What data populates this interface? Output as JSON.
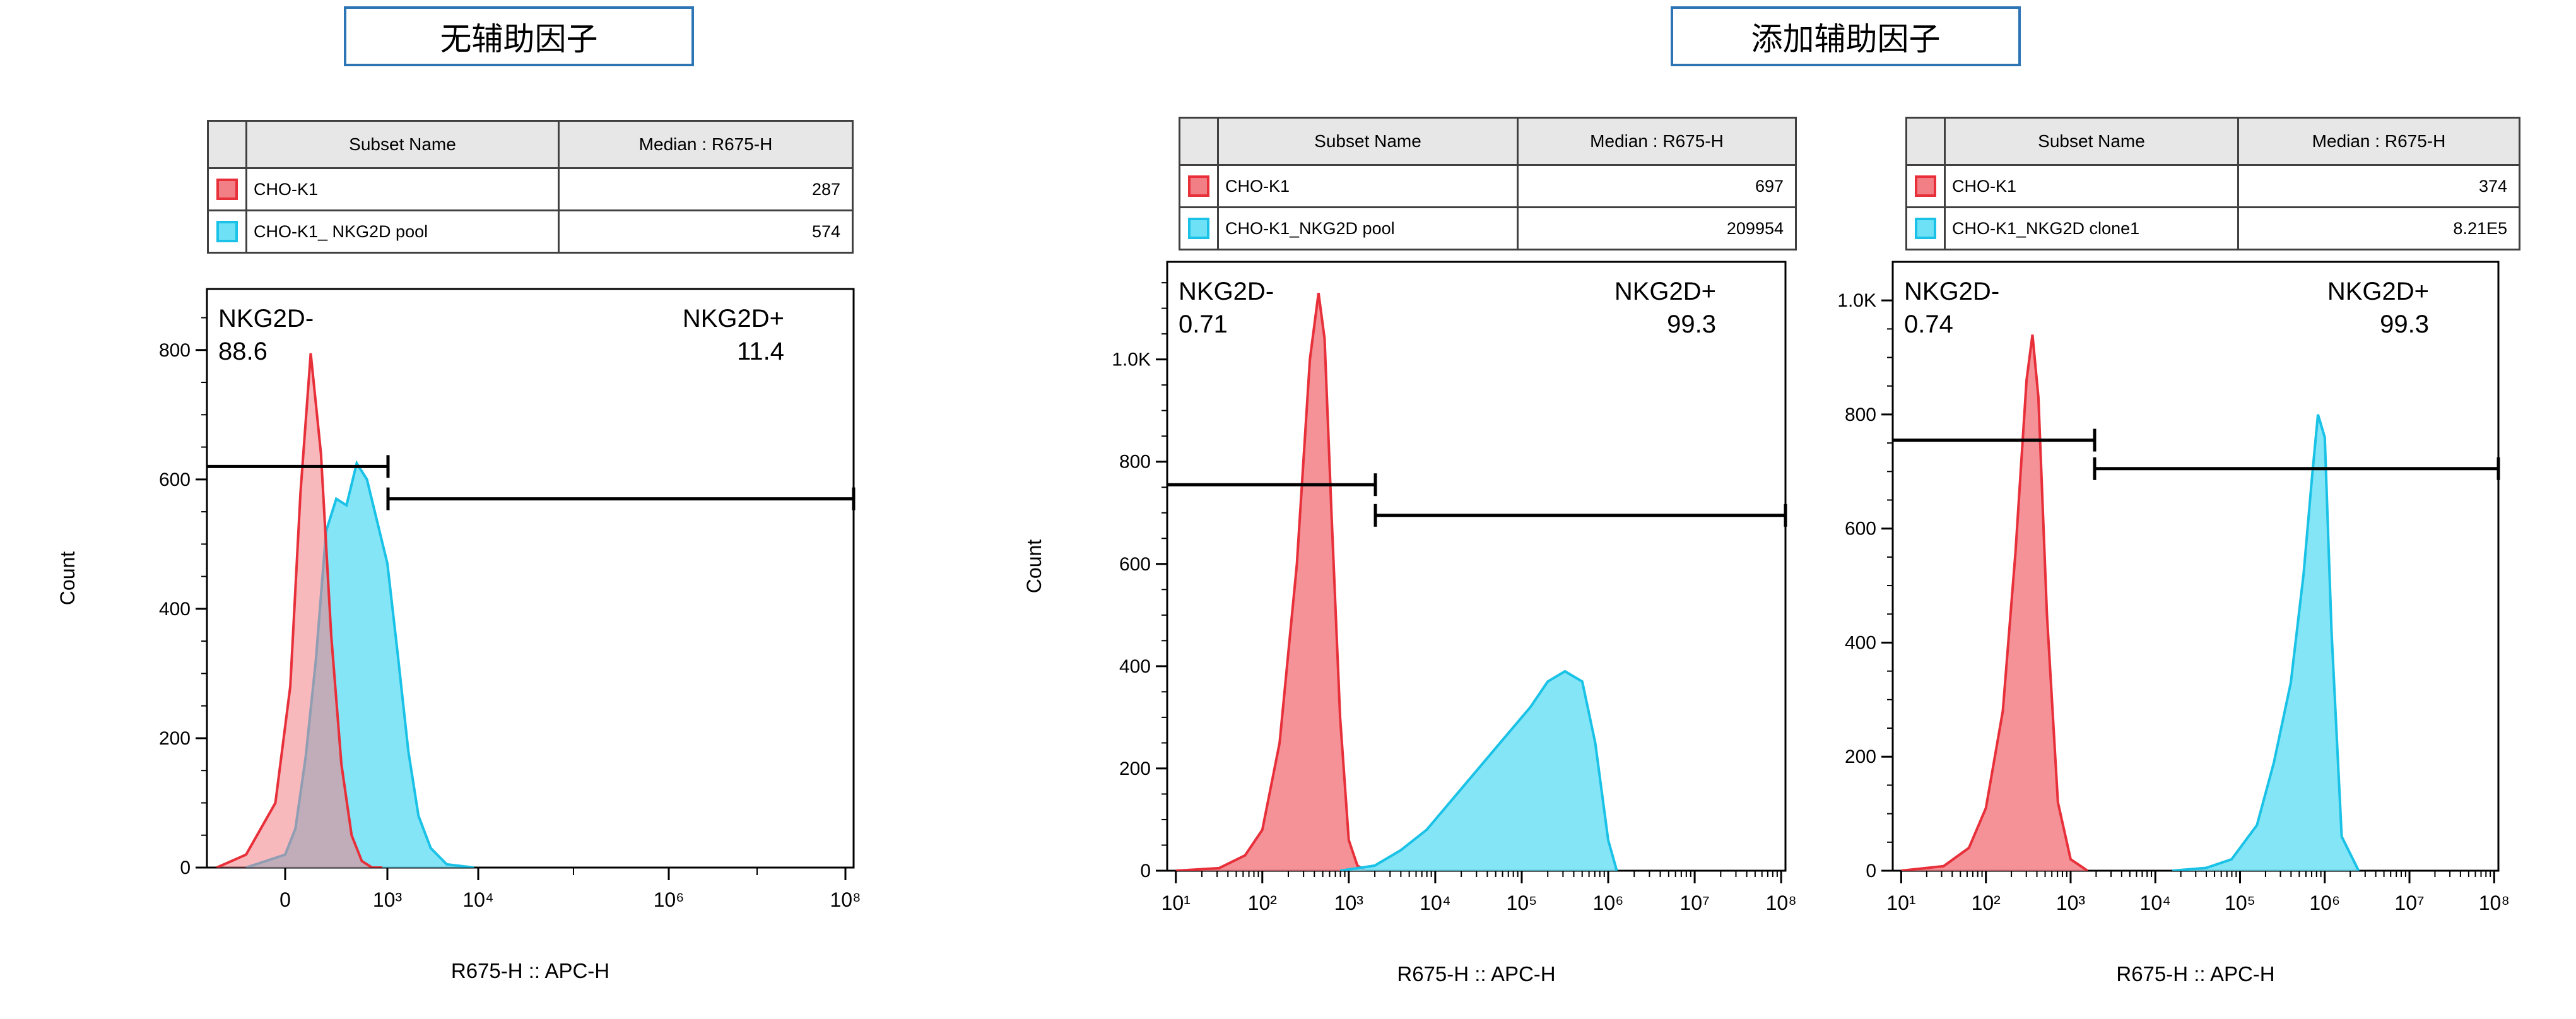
{
  "titles": {
    "left": "无辅助因子",
    "right": "添加辅助因子"
  },
  "colors": {
    "red_fill": "#f27f86",
    "red_line": "#e8303a",
    "cyan_fill": "#6fe1f6",
    "cyan_line": "#19c2e6",
    "overlap_fill": "#b98f9b",
    "title_border": "#2e75b6"
  },
  "legend_header": {
    "name": "Subset Name",
    "value": "Median : R675-H"
  },
  "legends": [
    {
      "rows": [
        {
          "color": "red",
          "name": "CHO-K1",
          "value": "287"
        },
        {
          "color": "cyan",
          "name": "CHO-K1_ NKG2D pool",
          "value": "574"
        }
      ]
    },
    {
      "rows": [
        {
          "color": "red",
          "name": "CHO-K1",
          "value": "697"
        },
        {
          "color": "cyan",
          "name": "CHO-K1_NKG2D pool",
          "value": "209954"
        }
      ]
    },
    {
      "rows": [
        {
          "color": "red",
          "name": "CHO-K1",
          "value": "374"
        },
        {
          "color": "cyan",
          "name": "CHO-K1_NKG2D clone1",
          "value": "8.21E5"
        }
      ]
    }
  ],
  "chart_data": [
    {
      "type": "area",
      "title": "无辅助因子",
      "xlabel": "R675-H :: APC-H",
      "ylabel": "Count",
      "x_scale": "biexponential",
      "ylim": [
        0,
        870
      ],
      "y_ticks": [
        "0",
        "200",
        "400",
        "600",
        "800"
      ],
      "x_ticks": [
        "0",
        "10³",
        "10⁴",
        "10⁶",
        "10⁸"
      ],
      "gates": [
        {
          "name": "NKG2D-",
          "percent": "88.6",
          "y": 620
        },
        {
          "name": "NKG2D+",
          "percent": "11.4",
          "y": 570
        }
      ],
      "series": [
        {
          "name": "CHO-K1",
          "color": "red",
          "x": [
            -350,
            -200,
            -50,
            50,
            150,
            250,
            350,
            450,
            550,
            650,
            750,
            850,
            950
          ],
          "y": [
            0,
            20,
            100,
            280,
            580,
            795,
            640,
            360,
            160,
            50,
            10,
            0,
            0
          ]
        },
        {
          "name": "CHO-K1_ NKG2D pool",
          "color": "cyan",
          "x": [
            -200,
            0,
            100,
            200,
            300,
            400,
            500,
            600,
            700,
            800,
            1000,
            1300,
            1700,
            2200,
            3000,
            4500,
            9000
          ],
          "y": [
            0,
            20,
            60,
            170,
            320,
            520,
            570,
            560,
            625,
            600,
            470,
            330,
            180,
            80,
            30,
            5,
            0
          ]
        }
      ]
    },
    {
      "type": "area",
      "title": "添加辅助因子",
      "xlabel": "R675-H :: APC-H",
      "ylabel": "Count",
      "x_scale": "log",
      "ylim": [
        0,
        1160
      ],
      "y_ticks": [
        "0",
        "200",
        "400",
        "600",
        "800",
        "1.0K"
      ],
      "x_ticks": [
        "10¹",
        "10²",
        "10³",
        "10⁴",
        "10⁵",
        "10⁶",
        "10⁷",
        "10⁸"
      ],
      "gates": [
        {
          "name": "NKG2D-",
          "percent": "0.71",
          "y": 755
        },
        {
          "name": "NKG2D+",
          "percent": "99.3",
          "y": 695
        }
      ],
      "series": [
        {
          "name": "CHO-K1",
          "color": "red",
          "x": [
            1,
            1.5,
            1.8,
            2,
            2.2,
            2.4,
            2.55,
            2.65,
            2.72,
            2.8,
            2.9,
            3.0,
            3.1,
            3.2
          ],
          "y": [
            0,
            5,
            30,
            80,
            250,
            600,
            1000,
            1130,
            1040,
            700,
            300,
            60,
            10,
            0
          ]
        },
        {
          "name": "CHO-K1_NKG2D pool",
          "color": "cyan",
          "x": [
            2.9,
            3.3,
            3.6,
            3.9,
            4.2,
            4.5,
            4.8,
            5.1,
            5.3,
            5.5,
            5.7,
            5.85,
            6.0,
            6.1
          ],
          "y": [
            0,
            10,
            40,
            80,
            140,
            200,
            260,
            320,
            370,
            390,
            370,
            250,
            60,
            0
          ]
        }
      ]
    },
    {
      "type": "area",
      "xlabel": "R675-H :: APC-H",
      "x_scale": "log",
      "ylim": [
        0,
        1040
      ],
      "y_ticks": [
        "0",
        "200",
        "400",
        "600",
        "800",
        "1.0K"
      ],
      "x_ticks": [
        "10¹",
        "10²",
        "10³",
        "10⁴",
        "10⁵",
        "10⁶",
        "10⁷",
        "10⁸"
      ],
      "gates": [
        {
          "name": "NKG2D-",
          "percent": "0.74",
          "y": 755
        },
        {
          "name": "NKG2D+",
          "percent": "99.3",
          "y": 705
        }
      ],
      "series": [
        {
          "name": "CHO-K1",
          "color": "red",
          "x": [
            1,
            1.5,
            1.8,
            2.0,
            2.2,
            2.35,
            2.48,
            2.55,
            2.62,
            2.72,
            2.85,
            3.0,
            3.2
          ],
          "y": [
            0,
            8,
            40,
            110,
            280,
            560,
            860,
            940,
            830,
            450,
            120,
            20,
            0
          ]
        },
        {
          "name": "CHO-K1_NKG2D clone1",
          "color": "cyan",
          "x": [
            4.2,
            4.6,
            4.9,
            5.2,
            5.4,
            5.6,
            5.75,
            5.85,
            5.92,
            6.0,
            6.08,
            6.2,
            6.4
          ],
          "y": [
            0,
            5,
            20,
            80,
            190,
            330,
            520,
            690,
            800,
            760,
            420,
            60,
            0
          ]
        }
      ]
    }
  ]
}
